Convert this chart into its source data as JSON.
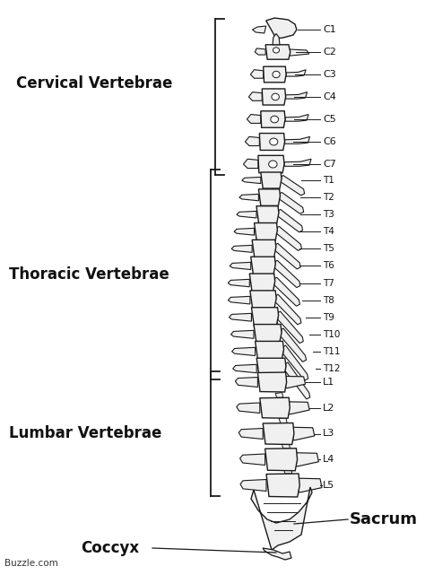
{
  "bg_color": "#ffffff",
  "spine_color": "#1a1a1a",
  "fill_color": "#f0f0f0",
  "label_color": "#111111",
  "source_text": "Buzzle.com",
  "cervical_label": "Cervical Vertebrae",
  "thoracic_label": "Thoracic Vertebrae",
  "lumbar_label": "Lumbar Vertebrae",
  "sacrum_label": "Sacrum",
  "coccyx_label": "Coccyx",
  "cervical_vertebrae": [
    "C1",
    "C2",
    "C3",
    "C4",
    "C5",
    "C6",
    "C7"
  ],
  "thoracic_vertebrae": [
    "T1",
    "T2",
    "T3",
    "T4",
    "T5",
    "T6",
    "T7",
    "T8",
    "T9",
    "T10",
    "T11",
    "T12"
  ],
  "lumbar_vertebrae": [
    "L1",
    "L2",
    "L3",
    "L4",
    "L5"
  ]
}
